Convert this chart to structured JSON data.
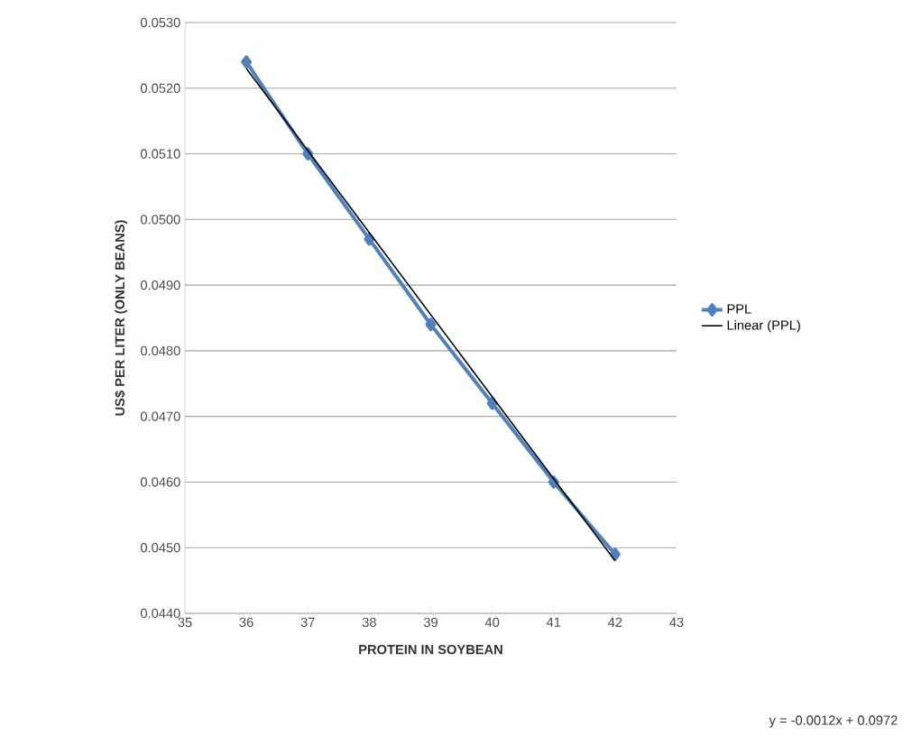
{
  "chart_data": {
    "type": "line",
    "xlabel": "PROTEIN IN SOYBEAN",
    "ylabel": "US$ PER LITER (ONLY BEANS)",
    "xlim": [
      35,
      43
    ],
    "xticks": [
      35,
      36,
      37,
      38,
      39,
      40,
      41,
      42,
      43
    ],
    "ylim": [
      0.044,
      0.053
    ],
    "yticks": [
      {
        "value": 0.044,
        "label": "0.0440"
      },
      {
        "value": 0.045,
        "label": "0.0450"
      },
      {
        "value": 0.046,
        "label": "0.0460"
      },
      {
        "value": 0.047,
        "label": "0.0470"
      },
      {
        "value": 0.048,
        "label": "0.0480"
      },
      {
        "value": 0.049,
        "label": "0.0490"
      },
      {
        "value": 0.05,
        "label": "0.0500"
      },
      {
        "value": 0.051,
        "label": "0.0510"
      },
      {
        "value": 0.052,
        "label": "0.0520"
      },
      {
        "value": 0.053,
        "label": "0.0530"
      }
    ],
    "series": [
      {
        "name": "PPL",
        "color": "#4f81bd",
        "x": [
          36,
          37,
          38,
          39,
          40,
          41,
          42
        ],
        "values": [
          0.0524,
          0.051,
          0.0497,
          0.0484,
          0.0472,
          0.046,
          0.0449
        ],
        "marker": "diamond",
        "line_style": "solid"
      },
      {
        "name": "Linear (PPL)",
        "color": "#000000",
        "x": [
          36,
          42
        ],
        "values": [
          0.0523,
          0.0448
        ],
        "marker": "none",
        "line_style": "solid"
      }
    ],
    "grid": "y",
    "legend": "right",
    "annotations": [
      "y = -0.0012x + 0.0972"
    ]
  }
}
